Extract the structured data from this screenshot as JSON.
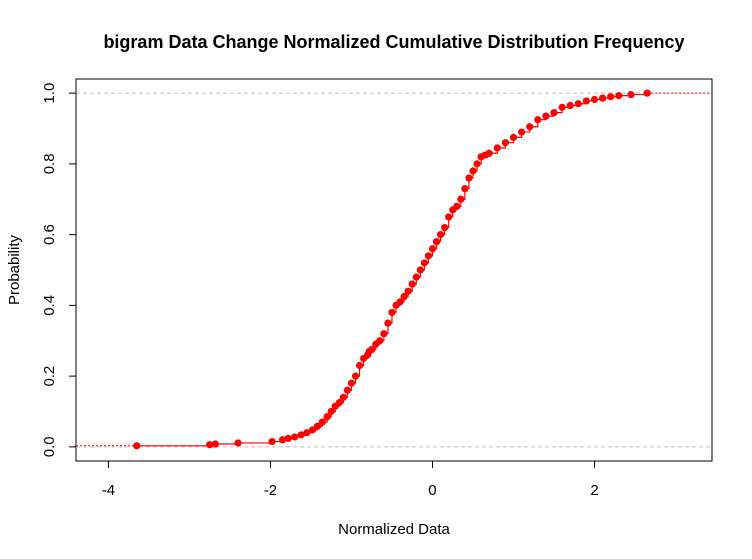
{
  "chart_data": {
    "type": "scatter",
    "title": "bigram Data Change Normalized Cumulative Distribution Frequency",
    "xlabel": "Normalized Data",
    "ylabel": "Probability",
    "xlim": [
      -4.4,
      3.45
    ],
    "ylim": [
      -0.04,
      1.04
    ],
    "x_ticks": [
      -4,
      -2,
      0,
      2
    ],
    "x_tick_labels": [
      "-4",
      "-2",
      "0",
      "2"
    ],
    "y_ticks": [
      0.0,
      0.2,
      0.4,
      0.6,
      0.8,
      1.0
    ],
    "y_tick_labels": [
      "0.0",
      "0.2",
      "0.4",
      "0.6",
      "0.8",
      "1.0"
    ],
    "reference_lines": [
      0,
      1
    ],
    "grid": false,
    "colors": {
      "series": "#ff0000",
      "reference_line": "#bebebe"
    },
    "series": [
      {
        "x": [
          -3.65,
          -2.75,
          -2.68,
          -2.4,
          -1.98,
          -1.85,
          -1.78,
          -1.7,
          -1.62,
          -1.55,
          -1.48,
          -1.42,
          -1.36,
          -1.3,
          -1.25,
          -1.2,
          -1.15,
          -1.1,
          -1.05,
          -1.0,
          -0.95,
          -0.9,
          -0.85,
          -0.8,
          -0.78,
          -0.75,
          -0.7,
          -0.65,
          -0.6,
          -0.55,
          -0.5,
          -0.45,
          -0.4,
          -0.35,
          -0.3,
          -0.25,
          -0.2,
          -0.15,
          -0.1,
          -0.05,
          0.0,
          0.05,
          0.1,
          0.15,
          0.2,
          0.25,
          0.3,
          0.35,
          0.4,
          0.45,
          0.5,
          0.55,
          0.6,
          0.65,
          0.7,
          0.8,
          0.9,
          1.0,
          1.1,
          1.2,
          1.3,
          1.4,
          1.5,
          1.6,
          1.7,
          1.8,
          1.9,
          2.0,
          2.1,
          2.2,
          2.3,
          2.45,
          2.65
        ],
        "y": [
          0.003,
          0.006,
          0.008,
          0.011,
          0.015,
          0.02,
          0.024,
          0.028,
          0.034,
          0.04,
          0.048,
          0.058,
          0.07,
          0.085,
          0.1,
          0.115,
          0.125,
          0.14,
          0.16,
          0.18,
          0.2,
          0.23,
          0.25,
          0.26,
          0.27,
          0.275,
          0.29,
          0.3,
          0.32,
          0.35,
          0.38,
          0.4,
          0.41,
          0.425,
          0.44,
          0.46,
          0.48,
          0.5,
          0.52,
          0.54,
          0.56,
          0.58,
          0.6,
          0.62,
          0.65,
          0.67,
          0.68,
          0.7,
          0.73,
          0.76,
          0.78,
          0.8,
          0.82,
          0.825,
          0.83,
          0.845,
          0.86,
          0.875,
          0.89,
          0.905,
          0.925,
          0.935,
          0.945,
          0.96,
          0.965,
          0.97,
          0.978,
          0.982,
          0.986,
          0.99,
          0.993,
          0.996,
          1.0
        ]
      }
    ]
  }
}
